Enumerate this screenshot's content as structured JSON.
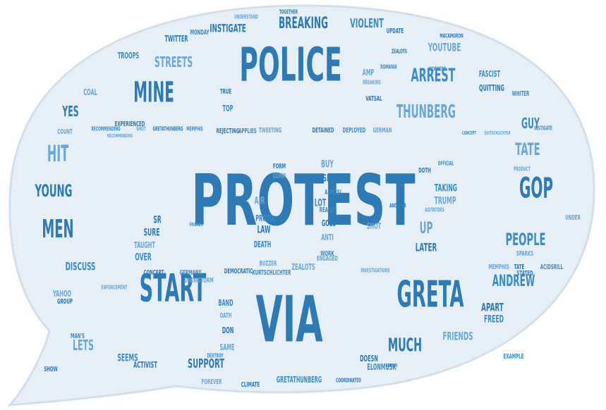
{
  "colors": {
    "bubble": "#e6eef6",
    "bubble_edge": "#d3e0ec",
    "word_dark": "#2e7ab5",
    "word_mid": "#3c8cc6",
    "word_light": "#6aa6d6"
  },
  "cloud": {
    "shape": "speech-bubble",
    "words": [
      {
        "text": "PROTEST",
        "size": 100
      },
      {
        "text": "VIA",
        "size": 90
      },
      {
        "text": "POLICE",
        "size": 66
      },
      {
        "text": "START",
        "size": 54
      },
      {
        "text": "GRETA",
        "size": 52
      },
      {
        "text": "GOP",
        "size": 40
      },
      {
        "text": "MINE",
        "size": 40
      },
      {
        "text": "MEN",
        "size": 36
      },
      {
        "text": "HIT",
        "size": 32
      },
      {
        "text": "YOUNG",
        "size": 24
      },
      {
        "text": "ARREST",
        "size": 26
      },
      {
        "text": "THUNBERG",
        "size": 26
      },
      {
        "text": "MUCH",
        "size": 26
      },
      {
        "text": "PEOPLE",
        "size": 24
      },
      {
        "text": "TATE",
        "size": 24
      },
      {
        "text": "BREAKING",
        "size": 22
      },
      {
        "text": "ANDREW",
        "size": 22
      },
      {
        "text": "STREETS",
        "size": 20
      },
      {
        "text": "YES",
        "size": 20
      },
      {
        "text": "GUY",
        "size": 20
      },
      {
        "text": "LETS",
        "size": 20
      },
      {
        "text": "SUPPORT",
        "size": 18
      },
      {
        "text": "VIOLENT",
        "size": 18
      },
      {
        "text": "YOUTUBE",
        "size": 16
      },
      {
        "text": "INSTIGATE",
        "size": 16
      },
      {
        "text": "DISCUSS",
        "size": 16
      },
      {
        "text": "FRIENDS",
        "size": 16
      },
      {
        "text": "APART",
        "size": 16
      },
      {
        "text": "FREED",
        "size": 14
      },
      {
        "text": "UP",
        "size": 22
      },
      {
        "text": "LATER",
        "size": 16
      },
      {
        "text": "TAKING",
        "size": 14
      },
      {
        "text": "TRUMP",
        "size": 14
      },
      {
        "text": "TWITTER",
        "size": 12
      },
      {
        "text": "TROOPS",
        "size": 12
      },
      {
        "text": "COAL",
        "size": 12
      },
      {
        "text": "QUITTING",
        "size": 12
      },
      {
        "text": "FASCIST",
        "size": 12
      },
      {
        "text": "AIR",
        "size": 14
      },
      {
        "text": "LAW",
        "size": 14
      },
      {
        "text": "PROTO",
        "size": 12
      },
      {
        "text": "BUY",
        "size": 14
      },
      {
        "text": "ISN",
        "size": 14
      },
      {
        "text": "LOT",
        "size": 14
      },
      {
        "text": "SHOT",
        "size": 12
      },
      {
        "text": "GOES",
        "size": 12
      },
      {
        "text": "DEATH",
        "size": 12
      },
      {
        "text": "ANTI",
        "size": 12
      },
      {
        "text": "SURE",
        "size": 14
      },
      {
        "text": "OVER",
        "size": 14
      },
      {
        "text": "TAUGHT",
        "size": 12
      },
      {
        "text": "SR",
        "size": 14
      },
      {
        "text": "SEEMS",
        "size": 14
      },
      {
        "text": "YAHOO",
        "size": 12
      },
      {
        "text": "CONCEPT",
        "size": 10
      },
      {
        "text": "GERMANY",
        "size": 10
      },
      {
        "text": "SNOWSTORM",
        "size": 10
      },
      {
        "text": "DEMOCRATIC",
        "size": 10
      },
      {
        "text": "KURTSCHLICHTER",
        "size": 10
      },
      {
        "text": "ZEALOTS",
        "size": 12
      },
      {
        "text": "ACTIVIST",
        "size": 12
      },
      {
        "text": "ELONMUSK",
        "size": 12
      },
      {
        "text": "FOREVER",
        "size": 10
      },
      {
        "text": "CLIMATE",
        "size": 10
      },
      {
        "text": "GRETATHUNBERG",
        "size": 12
      },
      {
        "text": "SAME",
        "size": 12
      },
      {
        "text": "DON",
        "size": 12
      },
      {
        "text": "BAND",
        "size": 12
      },
      {
        "text": "OATH",
        "size": 10
      },
      {
        "text": "REJECTING",
        "size": 10
      },
      {
        "text": "APPLIES",
        "size": 10
      },
      {
        "text": "TWEETING",
        "size": 10
      },
      {
        "text": "DETAINED",
        "size": 10
      },
      {
        "text": "DEPLOYED",
        "size": 10
      },
      {
        "text": "GERMAN",
        "size": 10
      },
      {
        "text": "EXPERIENCED",
        "size": 10
      },
      {
        "text": "RECOMMENDING",
        "size": 8
      },
      {
        "text": "SHOT",
        "size": 8
      },
      {
        "text": "GRETATHUNBERG",
        "size": 8
      },
      {
        "text": "MEMPHIS",
        "size": 8
      },
      {
        "text": "MEMPHIS",
        "size": 10
      },
      {
        "text": "TATE",
        "size": 10
      },
      {
        "text": "ACIDSRILL",
        "size": 10
      },
      {
        "text": "SPARKS",
        "size": 10
      },
      {
        "text": "STATED",
        "size": 10
      },
      {
        "text": "EXAMPLE",
        "size": 10
      },
      {
        "text": "AMP",
        "size": 12
      },
      {
        "text": "TRUE",
        "size": 10
      },
      {
        "text": "TOP",
        "size": 12
      },
      {
        "text": "COUNT",
        "size": 10
      },
      {
        "text": "UPDATE",
        "size": 10
      },
      {
        "text": "MONDAY",
        "size": 10
      },
      {
        "text": "ENFORCEMENT",
        "size": 8
      },
      {
        "text": "GROUP",
        "size": 10
      },
      {
        "text": "DESTROY",
        "size": 8
      },
      {
        "text": "BUZZER",
        "size": 10
      },
      {
        "text": "DOESN",
        "size": 12
      },
      {
        "text": "REALLY",
        "size": 10
      },
      {
        "text": "COMP",
        "size": 10
      },
      {
        "text": "FORM",
        "size": 10
      },
      {
        "text": "WORK",
        "size": 10
      },
      {
        "text": "ENGAGED",
        "size": 10
      },
      {
        "text": "DOTH",
        "size": 10
      },
      {
        "text": "WHITER",
        "size": 10
      },
      {
        "text": "INVESTIGATIONS",
        "size": 8
      },
      {
        "text": "COORDINATED",
        "size": 8
      },
      {
        "text": "MAN'S",
        "size": 10
      },
      {
        "text": "AGITATORS",
        "size": 8
      },
      {
        "text": "SHOW",
        "size": 10
      },
      {
        "text": "OFFICIAL",
        "size": 8
      },
      {
        "text": "UNDER",
        "size": 10
      },
      {
        "text": "ANOTHER",
        "size": 8
      },
      {
        "text": "ADRUSI",
        "size": 10
      },
      {
        "text": "UNDERSTAND",
        "size": 8
      },
      {
        "text": "TOGETHER",
        "size": 8
      },
      {
        "text": "WORKERS",
        "size": 8
      },
      {
        "text": "BREAKING",
        "size": 8
      },
      {
        "text": "VATSAL",
        "size": 10
      },
      {
        "text": "ROMANIA",
        "size": 8
      },
      {
        "text": "PRODUCT",
        "size": 8
      },
      {
        "text": "MACAMORON",
        "size": 8
      },
      {
        "text": "INSTIGATE",
        "size": 8
      },
      {
        "text": "RECOMMENDING",
        "size": 7
      },
      {
        "text": "ZEALOTS",
        "size": 8
      },
      {
        "text": "CONCEPT",
        "size": 7
      },
      {
        "text": "QUITSCHLICHTER",
        "size": 7
      },
      {
        "text": "ADRUSI",
        "size": 7
      },
      {
        "text": "FRIENDS",
        "size": 7
      }
    ]
  }
}
